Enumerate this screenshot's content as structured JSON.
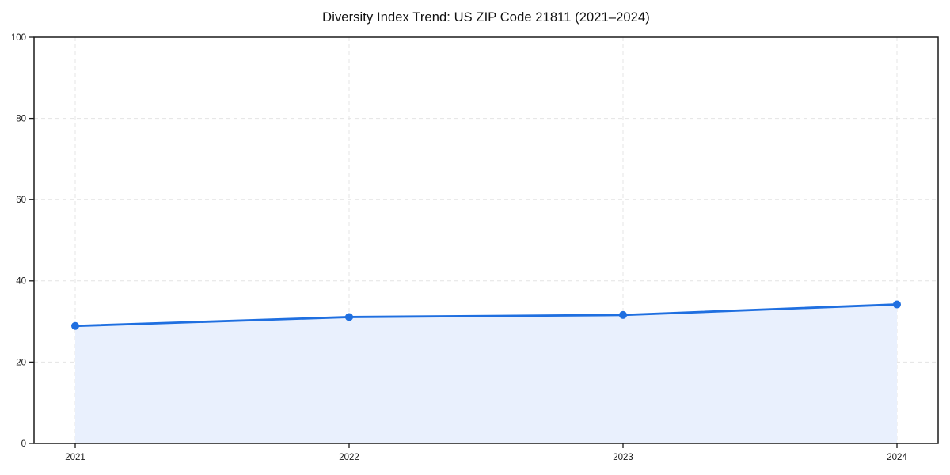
{
  "chart_data": {
    "type": "line",
    "title": "Diversity Index Trend: US ZIP Code 21811 (2021–2024)",
    "x": [
      "2021",
      "2022",
      "2023",
      "2024"
    ],
    "series": [
      {
        "name": "Diversity Index",
        "values": [
          28.9,
          31.1,
          31.6,
          34.2
        ]
      }
    ],
    "ylim": [
      0,
      100
    ],
    "yticks": [
      0,
      20,
      40,
      60,
      80,
      100
    ],
    "grid": "dashed-both-axes",
    "legend": "none",
    "marker": "circle",
    "area_fill": true,
    "style": {
      "line_color": "#1f6fe0",
      "marker_color": "#1f6fe0",
      "area_fill_color": "#e9f0fd",
      "grid_color": "#e4e4e4",
      "axis_color": "#1a1a1a",
      "tick_label_color": "#1a1a1a",
      "background_color": "#ffffff"
    }
  }
}
